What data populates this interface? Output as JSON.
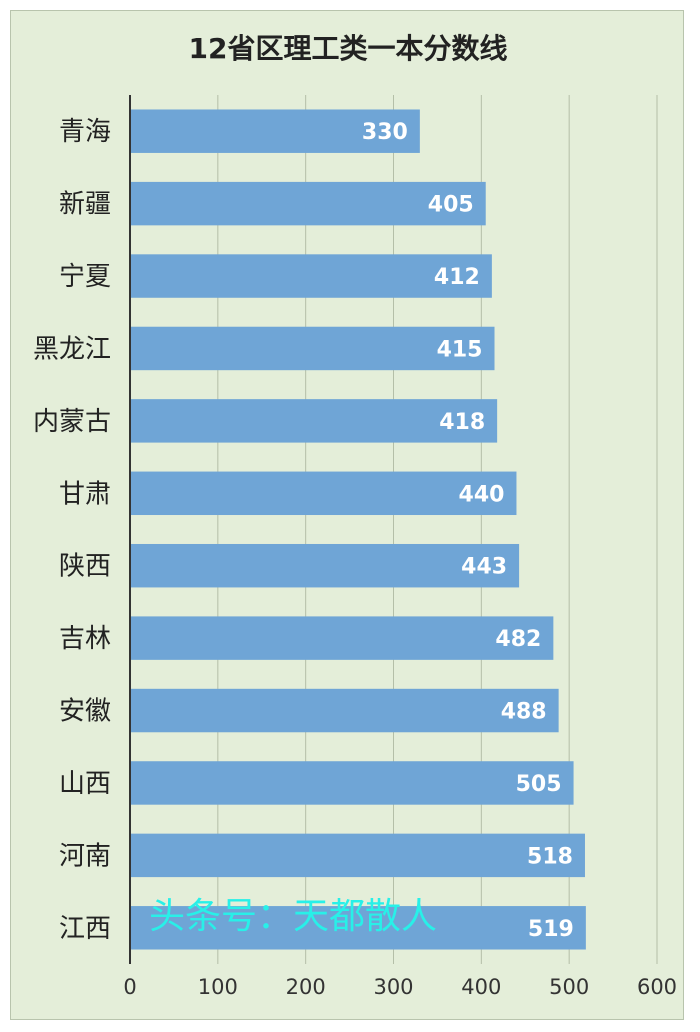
{
  "chart_data": {
    "type": "bar",
    "orientation": "horizontal",
    "title": "12省区理工类一本分数线",
    "categories": [
      "青海",
      "新疆",
      "宁夏",
      "黑龙江",
      "内蒙古",
      "甘肃",
      "陕西",
      "吉林",
      "安徽",
      "山西",
      "河南",
      "江西"
    ],
    "values": [
      330,
      405,
      412,
      415,
      418,
      440,
      443,
      482,
      488,
      505,
      518,
      519
    ],
    "xlim": [
      0,
      600
    ],
    "xticks": [
      0,
      100,
      200,
      300,
      400,
      500,
      600
    ],
    "grid": true,
    "legend": "none",
    "bar_color": "#6fa5d6",
    "background_color": "#e4eed9",
    "data_labels": true
  },
  "watermark": "头条号：天都散人"
}
